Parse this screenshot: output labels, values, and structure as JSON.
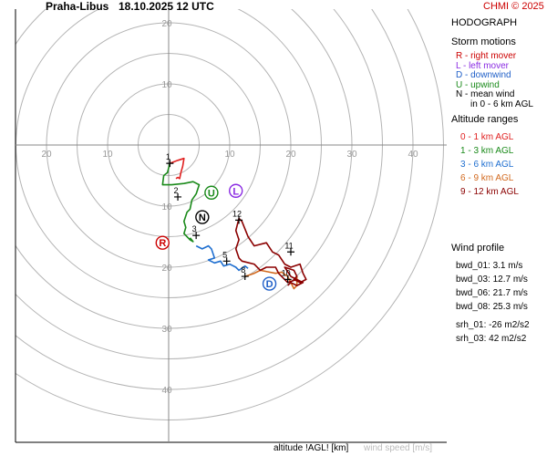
{
  "header": {
    "station": "Praha-Libus",
    "datetime": "18.10.2025 12 UTC",
    "copyright": "CHMI © 2025"
  },
  "panel": {
    "title": "HODOGRAPH",
    "storm_motions_title": "Storm motions",
    "storm_motions": [
      {
        "text": "R - right mover",
        "color": "#cc0000"
      },
      {
        "text": "L - left mover",
        "color": "#8a2be2"
      },
      {
        "text": "D - downwind",
        "color": "#1f5fc8"
      },
      {
        "text": "U - upwind",
        "color": "#1a8a1a"
      },
      {
        "text": "N - mean wind",
        "color": "#000000"
      },
      {
        "text": "in 0 - 6 km AGL",
        "color": "#000000"
      }
    ],
    "altitude_title": "Altitude ranges",
    "altitude_ranges": [
      {
        "text": "0 - 1 km AGL",
        "color": "#e02020"
      },
      {
        "text": "1 - 3 km AGL",
        "color": "#1a8a1a"
      },
      {
        "text": "3 - 6 km AGL",
        "color": "#1f6fd0"
      },
      {
        "text": "6 - 9 km AGL",
        "color": "#d2691e"
      },
      {
        "text": "9 - 12 km AGL",
        "color": "#8b0000"
      }
    ],
    "wind_profile_title": "Wind profile",
    "wind_profile": [
      "bwd_01: 3.1 m/s",
      "bwd_03: 12.7 m/s",
      "bwd_06: 21.7 m/s",
      "bwd_08: 25.3 m/s",
      "srh_01: -26 m2/s2",
      "srh_03: 42 m2/s2"
    ]
  },
  "footer": {
    "altitude_label": "altitude !AGL! [km]",
    "speed_label": "wind speed [m/s]"
  },
  "chart_data": {
    "type": "line",
    "axis": {
      "rings": [
        5,
        10,
        15,
        20,
        25,
        30,
        35,
        40,
        45
      ],
      "x_tick_labels": [
        "20",
        "10",
        "10",
        "20",
        "30",
        "40"
      ],
      "x_tick_values": [
        -20,
        -10,
        10,
        20,
        30,
        40
      ],
      "y_tick_labels": [
        "20",
        "10",
        "10",
        "20",
        "30",
        "40"
      ],
      "y_tick_values": [
        20,
        10,
        -10,
        -20,
        -30,
        -40
      ],
      "xlim": [
        -25,
        40
      ],
      "ylim": [
        -50,
        22
      ]
    },
    "series": [
      {
        "name": "0 - 1 km AGL",
        "color": "#e02020",
        "points": [
          [
            0.2,
            -3.0
          ],
          [
            1.5,
            -2.5
          ],
          [
            2.5,
            -2.2
          ],
          [
            2.3,
            -3.5
          ],
          [
            2.0,
            -4.5
          ],
          [
            1.8,
            -5.5
          ],
          [
            1.5,
            -5.3
          ],
          [
            1.2,
            -5.5
          ]
        ]
      },
      {
        "name": "1 - 3 km AGL",
        "color": "#1a8a1a",
        "points": [
          [
            0.2,
            -3.0
          ],
          [
            -0.2,
            -4.5
          ],
          [
            -0.8,
            -5.0
          ],
          [
            -1.0,
            -6.5
          ],
          [
            0.5,
            -6.5
          ],
          [
            2.5,
            -6.3
          ],
          [
            4.0,
            -6.0
          ],
          [
            5.0,
            -6.5
          ],
          [
            4.5,
            -8.0
          ],
          [
            3.8,
            -9.0
          ],
          [
            3.5,
            -10.5
          ],
          [
            3.0,
            -11.0
          ],
          [
            2.5,
            -12.5
          ],
          [
            2.8,
            -13.5
          ],
          [
            2.5,
            -14.5
          ],
          [
            3.5,
            -15.5
          ],
          [
            4.0,
            -15.8
          ],
          [
            3.5,
            -15.2
          ]
        ]
      },
      {
        "name": "3 - 6 km AGL",
        "color": "#1f6fd0",
        "points": [
          [
            4.5,
            -16.5
          ],
          [
            5.5,
            -17.0
          ],
          [
            6.5,
            -16.5
          ],
          [
            7.0,
            -17.0
          ],
          [
            7.5,
            -18.5
          ],
          [
            6.5,
            -18.8
          ],
          [
            7.5,
            -19.3
          ],
          [
            8.5,
            -19.0
          ],
          [
            9.0,
            -19.8
          ],
          [
            10.0,
            -19.5
          ],
          [
            11.0,
            -20.0
          ],
          [
            11.5,
            -20.5
          ],
          [
            12.5,
            -19.8
          ],
          [
            13.0,
            -20.2
          ]
        ]
      },
      {
        "name": "6 - 9 km AGL",
        "color": "#d2691e",
        "points": [
          [
            12.5,
            -21.5
          ],
          [
            14.0,
            -21.0
          ],
          [
            15.0,
            -20.5
          ],
          [
            16.5,
            -20.8
          ],
          [
            17.5,
            -21.0
          ],
          [
            18.5,
            -20.8
          ],
          [
            19.5,
            -21.5
          ],
          [
            20.0,
            -22.5
          ],
          [
            20.5,
            -23.5
          ],
          [
            21.0,
            -23.0
          ],
          [
            21.0,
            -21.5
          ]
        ]
      },
      {
        "name": "9 - 12 km AGL",
        "color": "#8b0000",
        "points": [
          [
            21.0,
            -22.0
          ],
          [
            19.5,
            -22.5
          ],
          [
            18.5,
            -21.5
          ],
          [
            18.0,
            -21.0
          ],
          [
            17.5,
            -20.0
          ],
          [
            16.0,
            -20.0
          ],
          [
            15.0,
            -20.5
          ],
          [
            14.0,
            -19.5
          ],
          [
            12.0,
            -19.0
          ],
          [
            11.5,
            -18.5
          ],
          [
            11.0,
            -17.0
          ],
          [
            11.5,
            -15.5
          ],
          [
            11.0,
            -14.0
          ],
          [
            11.5,
            -12.0
          ],
          [
            12.0,
            -12.5
          ],
          [
            13.0,
            -15.0
          ],
          [
            14.0,
            -16.5
          ],
          [
            16.0,
            -16.0
          ],
          [
            17.0,
            -17.5
          ],
          [
            18.0,
            -18.0
          ],
          [
            19.0,
            -19.5
          ],
          [
            20.0,
            -20.0
          ],
          [
            21.5,
            -19.5
          ],
          [
            22.0,
            -21.0
          ],
          [
            22.5,
            -22.0
          ],
          [
            21.5,
            -22.5
          ],
          [
            20.5,
            -22.0
          ],
          [
            21.0,
            -21.5
          ],
          [
            20.5,
            -20.5
          ],
          [
            19.0,
            -20.0
          ],
          [
            20.0,
            -21.5
          ],
          [
            22.0,
            -22.5
          ],
          [
            21.0,
            -23.0
          ],
          [
            20.0,
            -22.5
          ],
          [
            19.5,
            -23.0
          ]
        ]
      }
    ],
    "height_marks": [
      {
        "label": "1",
        "x": 0.2,
        "y": -3.0
      },
      {
        "label": "2",
        "x": 1.5,
        "y": -8.5
      },
      {
        "label": "3",
        "x": 4.5,
        "y": -14.8
      },
      {
        "label": "5",
        "x": 9.5,
        "y": -19.0
      },
      {
        "label": "8",
        "x": 12.5,
        "y": -21.5
      },
      {
        "label": "10",
        "x": 19.5,
        "y": -22.0
      },
      {
        "label": "11",
        "x": 20.0,
        "y": -17.5
      },
      {
        "label": "12",
        "x": 11.5,
        "y": -12.3
      }
    ],
    "storm_markers": [
      {
        "label": "R",
        "x": -1.0,
        "y": -16.0,
        "color": "#cc0000"
      },
      {
        "label": "L",
        "x": 11.0,
        "y": -7.5,
        "color": "#8a2be2"
      },
      {
        "label": "U",
        "x": 7.0,
        "y": -7.8,
        "color": "#1a8a1a"
      },
      {
        "label": "N",
        "x": 5.5,
        "y": -11.8,
        "color": "#000000"
      },
      {
        "label": "D",
        "x": 16.5,
        "y": -22.7,
        "color": "#1f5fc8"
      }
    ]
  }
}
